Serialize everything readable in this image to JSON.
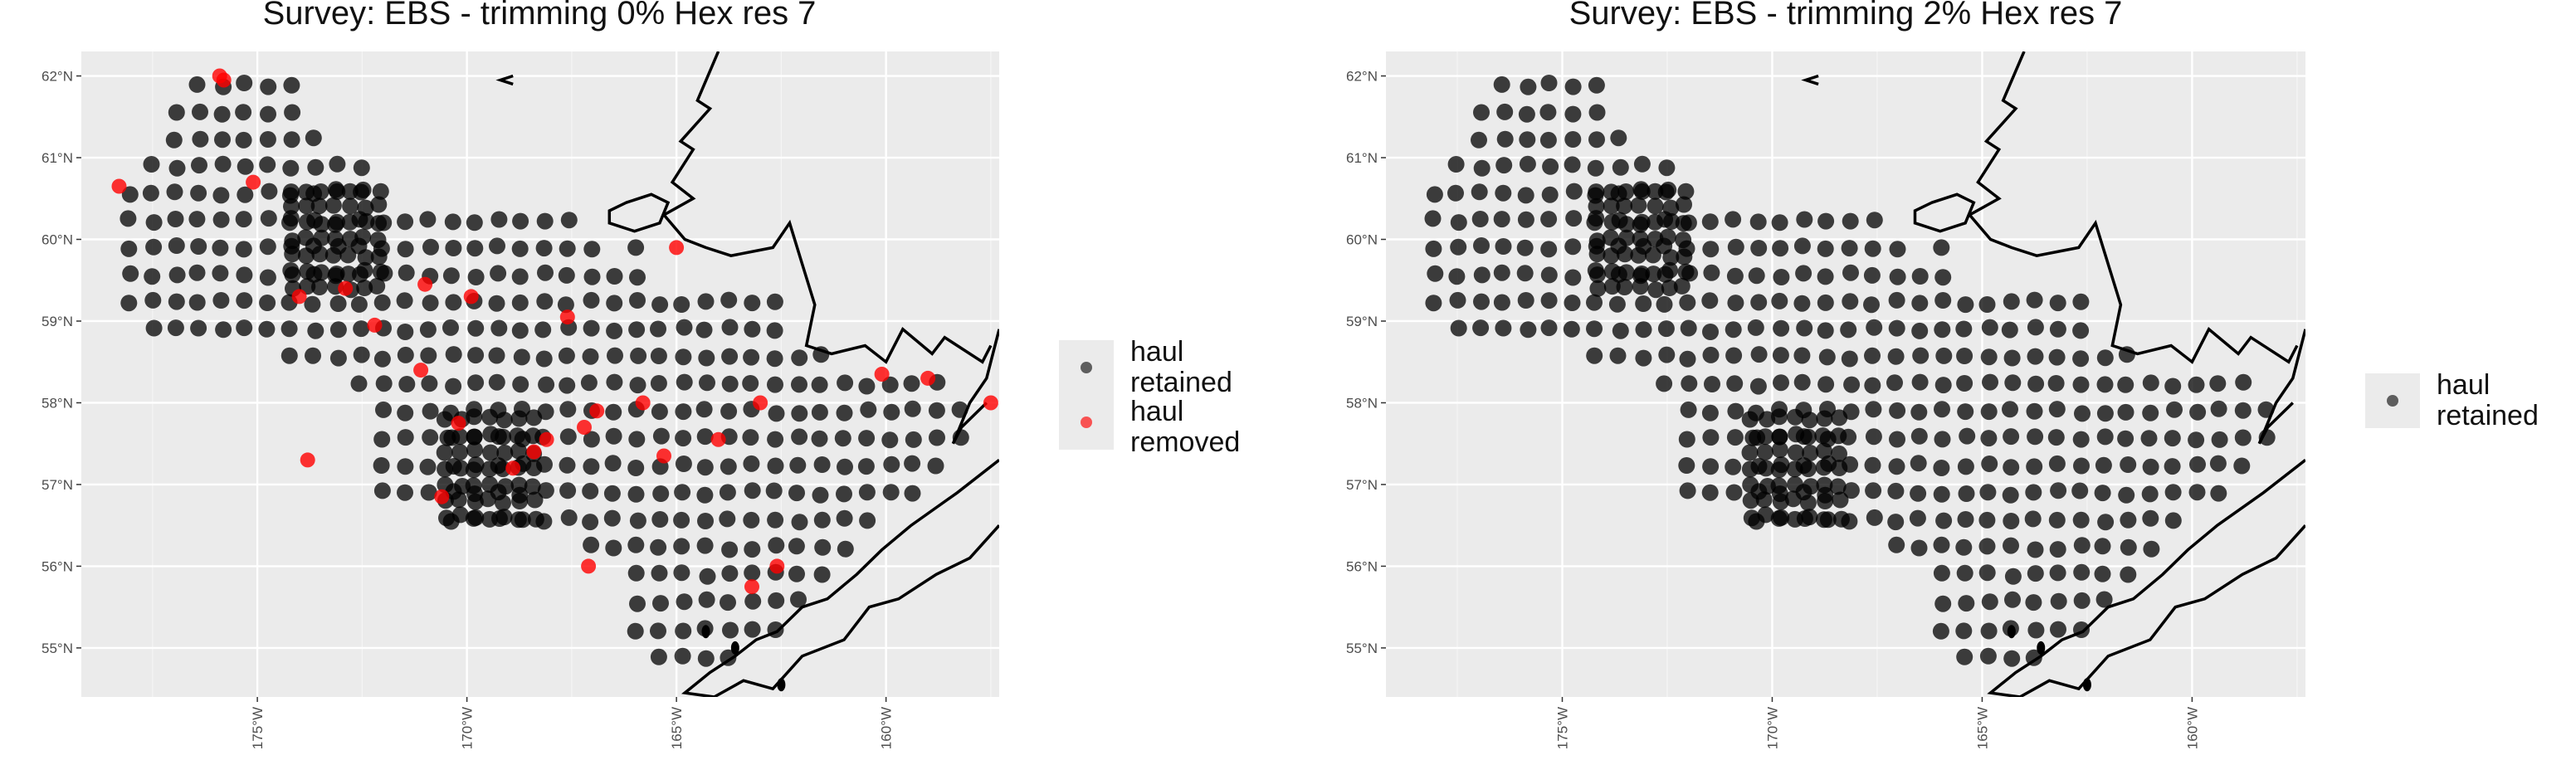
{
  "chart_data": [
    {
      "type": "scatter",
      "title": "Survey: EBS - trimming 0% Hex res 7",
      "xlabel": "",
      "ylabel": "",
      "xlim": [
        -179.2,
        -157.3
      ],
      "ylim": [
        54.4,
        62.3
      ],
      "grid": true,
      "x_ticks": [
        -175,
        -170,
        -165,
        -160
      ],
      "x_tick_labels": [
        "175°W",
        "170°W",
        "165°W",
        "160°W"
      ],
      "y_ticks": [
        55,
        56,
        57,
        58,
        59,
        60,
        61,
        62
      ],
      "y_tick_labels": [
        "55°N",
        "56°N",
        "57°N",
        "58°N",
        "59°N",
        "60°N",
        "61°N",
        "62°N"
      ],
      "legend_placement": "right",
      "series": [
        {
          "name": "haul retained",
          "color": "#000000",
          "note_points": "grid of survey haul locations across the eastern Bering Sea shelf"
        },
        {
          "name": "haul removed",
          "color": "#ff0000",
          "points": [
            [
              -175.9,
              62.0
            ],
            [
              -175.8,
              61.95
            ],
            [
              -178.3,
              60.65
            ],
            [
              -175.1,
              60.7
            ],
            [
              -174.0,
              59.3
            ],
            [
              -172.9,
              59.4
            ],
            [
              -172.2,
              58.95
            ],
            [
              -171.0,
              59.45
            ],
            [
              -169.9,
              59.3
            ],
            [
              -167.6,
              59.05
            ],
            [
              -165.0,
              59.9
            ],
            [
              -165.8,
              58.0
            ],
            [
              -166.9,
              57.9
            ],
            [
              -167.2,
              57.7
            ],
            [
              -168.1,
              57.55
            ],
            [
              -168.4,
              57.4
            ],
            [
              -168.9,
              57.2
            ],
            [
              -170.2,
              57.75
            ],
            [
              -170.6,
              56.85
            ],
            [
              -167.1,
              56.0
            ],
            [
              -162.6,
              56.0
            ],
            [
              -163.2,
              55.75
            ],
            [
              -159.0,
              58.3
            ],
            [
              -160.1,
              58.35
            ],
            [
              -157.5,
              58.0
            ],
            [
              -163.0,
              58.0
            ],
            [
              -164.0,
              57.55
            ],
            [
              -165.3,
              57.35
            ],
            [
              -173.8,
              57.3
            ],
            [
              -171.1,
              58.4
            ]
          ]
        }
      ]
    },
    {
      "type": "scatter",
      "title": "Survey: EBS - trimming 2% Hex res 7",
      "xlabel": "",
      "ylabel": "",
      "xlim": [
        -179.2,
        -157.3
      ],
      "ylim": [
        54.4,
        62.3
      ],
      "grid": true,
      "x_ticks": [
        -175,
        -170,
        -165,
        -160
      ],
      "x_tick_labels": [
        "175°W",
        "170°W",
        "165°W",
        "160°W"
      ],
      "y_ticks": [
        55,
        56,
        57,
        58,
        59,
        60,
        61,
        62
      ],
      "y_tick_labels": [
        "55°N",
        "56°N",
        "57°N",
        "58°N",
        "59°N",
        "60°N",
        "61°N",
        "62°N"
      ],
      "legend_placement": "right",
      "series": [
        {
          "name": "haul retained",
          "color": "#000000",
          "note_points": "grid of survey haul locations across the eastern Bering Sea shelf"
        }
      ]
    }
  ],
  "legends": [
    {
      "items": [
        {
          "line1": "haul",
          "line2": "retained",
          "color": "#000000"
        },
        {
          "line1": "haul",
          "line2": "removed",
          "color": "#ff0000"
        }
      ]
    },
    {
      "items": [
        {
          "line1": "haul",
          "line2": "retained",
          "color": "#000000"
        }
      ]
    }
  ]
}
